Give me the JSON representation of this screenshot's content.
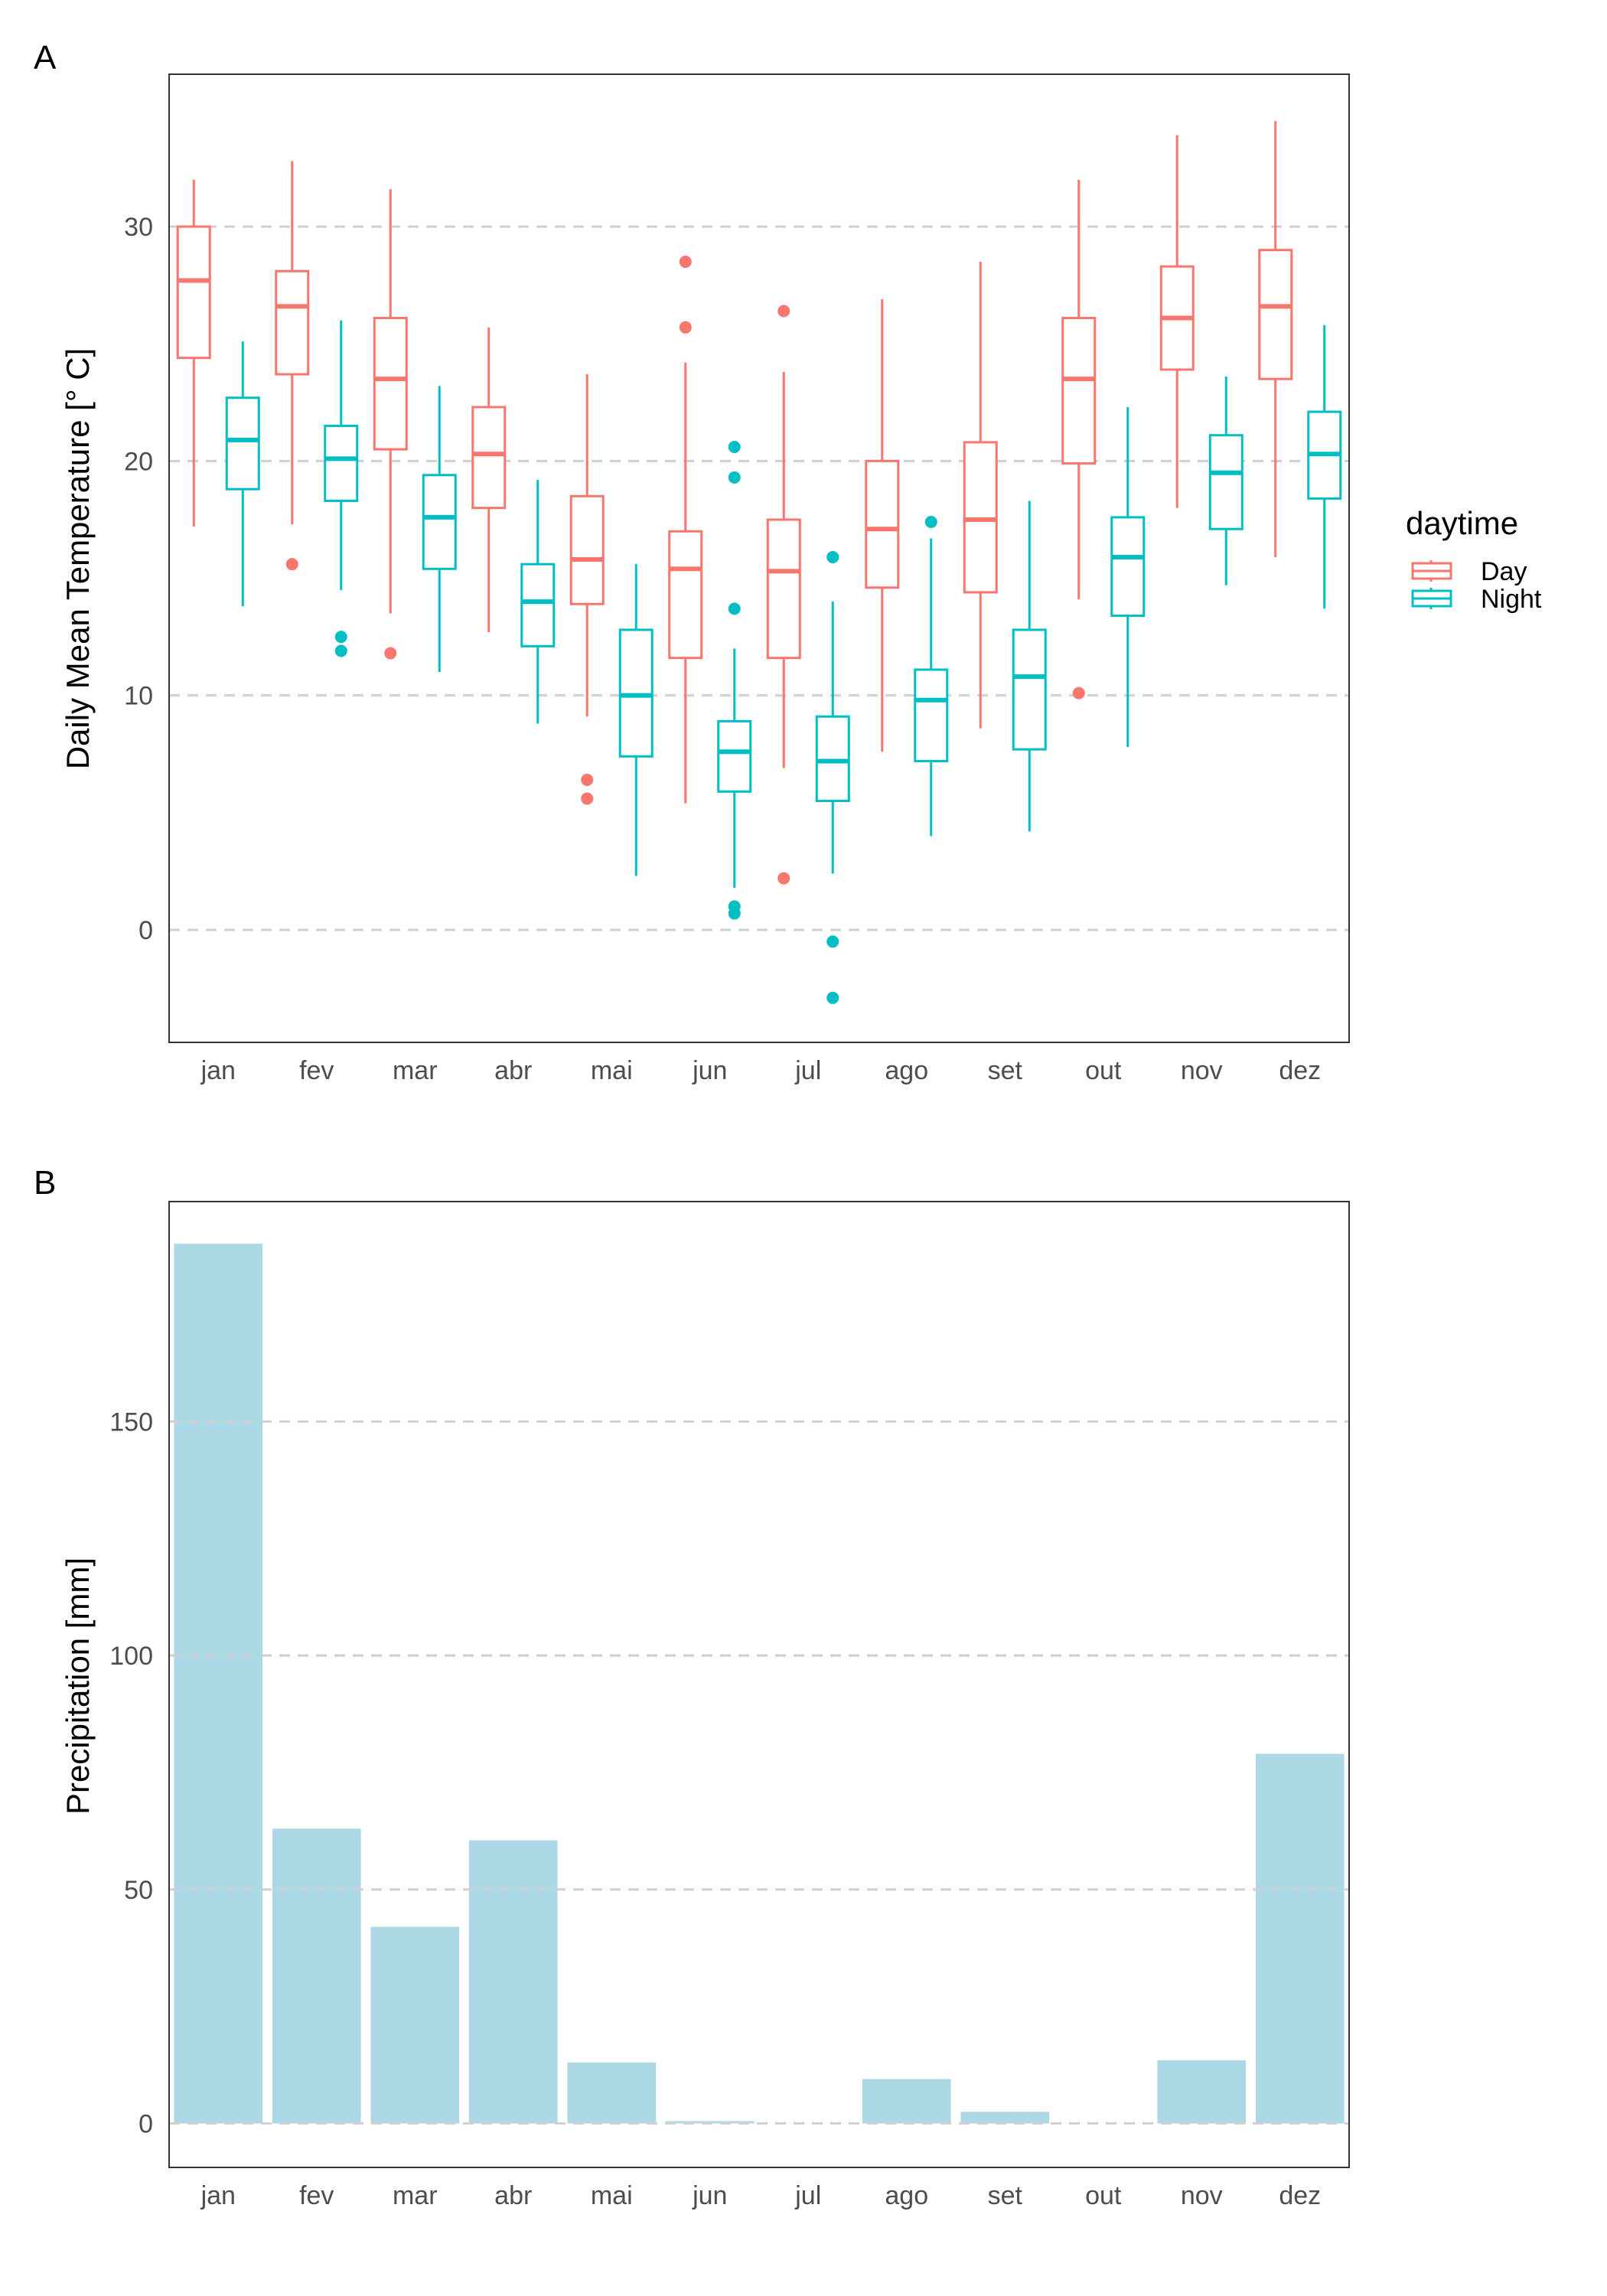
{
  "chart_data": [
    {
      "tag": "A",
      "type": "boxplot",
      "ylabel": "Daily Mean Temperature [° C]",
      "xlabel": "",
      "categories": [
        "jan",
        "fev",
        "mar",
        "abr",
        "mai",
        "jun",
        "jul",
        "ago",
        "set",
        "out",
        "nov",
        "dez"
      ],
      "ylim": [
        -4.8,
        36.5
      ],
      "yticks": [
        0,
        10,
        20,
        30
      ],
      "grid": "horizontal dashed",
      "legend": {
        "title": "daytime",
        "position": "right",
        "entries": [
          "Day",
          "Night"
        ]
      },
      "series": [
        {
          "name": "Day",
          "color": "#F8766D",
          "boxes": [
            {
              "whisker_low": 17.2,
              "q1": 24.4,
              "median": 27.7,
              "q3": 30.0,
              "whisker_high": 32.0,
              "outliers": []
            },
            {
              "whisker_low": 17.3,
              "q1": 23.7,
              "median": 26.6,
              "q3": 28.1,
              "whisker_high": 32.8,
              "outliers": [
                15.6
              ]
            },
            {
              "whisker_low": 13.5,
              "q1": 20.5,
              "median": 23.5,
              "q3": 26.1,
              "whisker_high": 31.6,
              "outliers": [
                11.8
              ]
            },
            {
              "whisker_low": 12.7,
              "q1": 18.0,
              "median": 20.3,
              "q3": 22.3,
              "whisker_high": 25.7,
              "outliers": []
            },
            {
              "whisker_low": 9.1,
              "q1": 13.9,
              "median": 15.8,
              "q3": 18.5,
              "whisker_high": 23.7,
              "outliers": [
                6.4,
                5.6
              ]
            },
            {
              "whisker_low": 5.4,
              "q1": 11.6,
              "median": 15.4,
              "q3": 17.0,
              "whisker_high": 24.2,
              "outliers": [
                28.5,
                25.7
              ]
            },
            {
              "whisker_low": 6.9,
              "q1": 11.6,
              "median": 15.3,
              "q3": 17.5,
              "whisker_high": 23.8,
              "outliers": [
                26.4,
                2.2
              ]
            },
            {
              "whisker_low": 7.6,
              "q1": 14.6,
              "median": 17.1,
              "q3": 20.0,
              "whisker_high": 26.9,
              "outliers": []
            },
            {
              "whisker_low": 8.6,
              "q1": 14.4,
              "median": 17.5,
              "q3": 20.8,
              "whisker_high": 28.5,
              "outliers": []
            },
            {
              "whisker_low": 14.1,
              "q1": 19.9,
              "median": 23.5,
              "q3": 26.1,
              "whisker_high": 32.0,
              "outliers": [
                10.1
              ]
            },
            {
              "whisker_low": 18.0,
              "q1": 23.9,
              "median": 26.1,
              "q3": 28.3,
              "whisker_high": 33.9,
              "outliers": []
            },
            {
              "whisker_low": 15.9,
              "q1": 23.5,
              "median": 26.6,
              "q3": 29.0,
              "whisker_high": 34.5,
              "outliers": []
            }
          ]
        },
        {
          "name": "Night",
          "color": "#00BFC4",
          "boxes": [
            {
              "whisker_low": 13.8,
              "q1": 18.8,
              "median": 20.9,
              "q3": 22.7,
              "whisker_high": 25.1,
              "outliers": []
            },
            {
              "whisker_low": 14.5,
              "q1": 18.3,
              "median": 20.1,
              "q3": 21.5,
              "whisker_high": 26.0,
              "outliers": [
                12.5,
                11.9
              ]
            },
            {
              "whisker_low": 11.0,
              "q1": 15.4,
              "median": 17.6,
              "q3": 19.4,
              "whisker_high": 23.2,
              "outliers": []
            },
            {
              "whisker_low": 8.8,
              "q1": 12.1,
              "median": 14.0,
              "q3": 15.6,
              "whisker_high": 19.2,
              "outliers": []
            },
            {
              "whisker_low": 2.3,
              "q1": 7.4,
              "median": 10.0,
              "q3": 12.8,
              "whisker_high": 15.6,
              "outliers": []
            },
            {
              "whisker_low": 1.8,
              "q1": 5.9,
              "median": 7.6,
              "q3": 8.9,
              "whisker_high": 12.0,
              "outliers": [
                20.6,
                19.3,
                13.7,
                1.0,
                0.7
              ]
            },
            {
              "whisker_low": 2.4,
              "q1": 5.5,
              "median": 7.2,
              "q3": 9.1,
              "whisker_high": 14.0,
              "outliers": [
                15.9,
                -0.5,
                -2.9
              ]
            },
            {
              "whisker_low": 4.0,
              "q1": 7.2,
              "median": 9.8,
              "q3": 11.1,
              "whisker_high": 16.7,
              "outliers": [
                17.4
              ]
            },
            {
              "whisker_low": 4.2,
              "q1": 7.7,
              "median": 10.8,
              "q3": 12.8,
              "whisker_high": 18.3,
              "outliers": []
            },
            {
              "whisker_low": 7.8,
              "q1": 13.4,
              "median": 15.9,
              "q3": 17.6,
              "whisker_high": 22.3,
              "outliers": []
            },
            {
              "whisker_low": 14.7,
              "q1": 17.1,
              "median": 19.5,
              "q3": 21.1,
              "whisker_high": 23.6,
              "outliers": []
            },
            {
              "whisker_low": 13.7,
              "q1": 18.4,
              "median": 20.3,
              "q3": 22.1,
              "whisker_high": 25.8,
              "outliers": []
            }
          ]
        }
      ]
    },
    {
      "tag": "B",
      "type": "bar",
      "ylabel": "Precipitation [mm]",
      "xlabel": "",
      "categories": [
        "jan",
        "fev",
        "mar",
        "abr",
        "mai",
        "jun",
        "jul",
        "ago",
        "set",
        "out",
        "nov",
        "dez"
      ],
      "values": [
        188,
        63,
        42,
        60.5,
        13,
        0.5,
        0,
        9.5,
        2.5,
        0,
        13.5,
        79
      ],
      "color": "#ADD8E6",
      "ylim": [
        -9.4,
        197
      ],
      "yticks": [
        0,
        50,
        100,
        150
      ],
      "grid": "horizontal dashed"
    }
  ]
}
